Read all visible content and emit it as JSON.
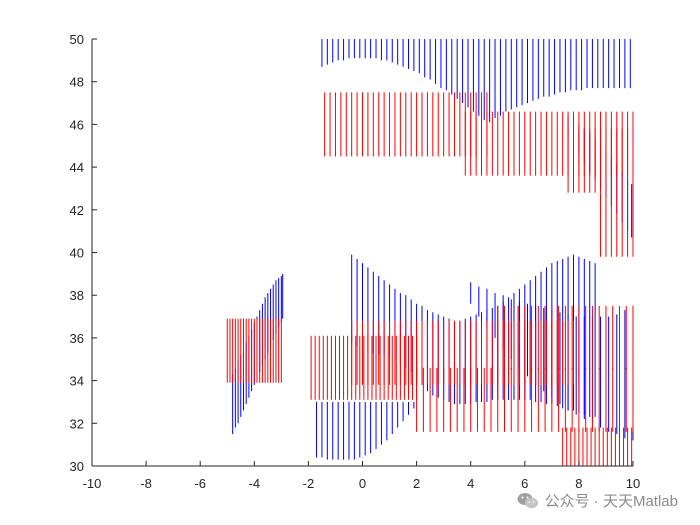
{
  "chart_data": {
    "type": "line",
    "title": "",
    "xlabel": "",
    "ylabel": "",
    "xlim": [
      -10,
      10
    ],
    "ylim": [
      30,
      50
    ],
    "xticks": [
      -10,
      -8,
      -6,
      -4,
      -2,
      0,
      2,
      4,
      6,
      8,
      10
    ],
    "yticks": [
      30,
      32,
      34,
      36,
      38,
      40,
      42,
      44,
      46,
      48,
      50
    ],
    "grid": false,
    "colors": {
      "blue": "#0000ff",
      "red": "#ff0000",
      "axis": "#262626"
    },
    "series": [
      {
        "color": "#0000ff",
        "segments": [
          {
            "x": [
              -4.8,
              -4.7,
              -4.6,
              -4.5,
              -4.4,
              -4.3,
              -4.2,
              -4.1,
              -4.0,
              -3.9,
              -3.8,
              -3.7,
              -3.6,
              -3.5,
              -3.4,
              -3.3,
              -3.2,
              -3.1,
              -3.0,
              -2.95
            ],
            "y1": [
              31.5,
              31.8,
              32.0,
              32.3,
              32.6,
              32.9,
              33.2,
              33.5,
              33.8,
              34.1,
              34.4,
              34.7,
              35.0,
              35.3,
              35.6,
              35.9,
              36.2,
              36.5,
              36.7,
              36.9
            ],
            "y2": [
              34.3,
              34.6,
              34.9,
              35.2,
              35.5,
              35.8,
              36.1,
              36.4,
              36.7,
              37.0,
              37.3,
              37.6,
              37.9,
              38.1,
              38.3,
              38.5,
              38.7,
              38.8,
              38.9,
              39.0
            ]
          },
          {
            "x": [
              -1.7,
              -1.5,
              -1.3,
              -1.1,
              -0.9,
              -0.7,
              -0.5,
              -0.3,
              -0.1,
              0.1,
              0.3,
              0.5,
              0.7,
              0.9,
              1.1,
              1.3,
              1.5,
              1.7,
              1.9
            ],
            "y1": [
              30.4,
              30.4,
              30.3,
              30.3,
              30.3,
              30.3,
              30.3,
              30.3,
              30.4,
              30.5,
              30.6,
              30.8,
              31.0,
              31.2,
              31.5,
              31.8,
              32.1,
              32.4,
              32.7
            ],
            "y2": [
              33.0,
              33.0,
              33.0,
              33.0,
              33.0,
              33.0,
              33.0,
              33.0,
              33.0,
              33.0,
              33.0,
              33.0,
              33.0,
              33.0,
              33.0,
              33.0,
              33.0,
              33.0,
              33.0
            ]
          },
          {
            "x": [
              -0.4,
              -0.2,
              0.0,
              0.2,
              0.4,
              0.6,
              0.8,
              1.0,
              1.2,
              1.4,
              1.6,
              1.8,
              2.0,
              2.2,
              2.4,
              2.6,
              2.8,
              3.0,
              3.2,
              3.4,
              3.6,
              3.8,
              4.0,
              4.2,
              4.4,
              4.6,
              4.8,
              5.0,
              5.2,
              5.4,
              5.6,
              5.8,
              6.0,
              6.2,
              6.4,
              6.6,
              6.8,
              7.0,
              7.2,
              7.4,
              7.6,
              7.8,
              8.0,
              8.2,
              8.4,
              8.6
            ],
            "y1": [
              35.8,
              35.6,
              35.5,
              35.4,
              35.3,
              35.2,
              35.2,
              35.1,
              35.0,
              34.8,
              34.6,
              34.4,
              34.1,
              33.8,
              33.5,
              33.3,
              33.2,
              33.1,
              33.0,
              32.9,
              32.9,
              32.9,
              32.9,
              33.0,
              33.0,
              33.0,
              33.1,
              33.1,
              33.1,
              33.1,
              33.1,
              33.1,
              33.1,
              33.1,
              33.0,
              33.0,
              32.9,
              32.9,
              32.8,
              32.7,
              32.6,
              32.6,
              32.5,
              32.4,
              32.3,
              32.3
            ],
            "y2": [
              39.9,
              39.7,
              39.5,
              39.3,
              39.1,
              38.9,
              38.7,
              38.5,
              38.3,
              38.1,
              38.0,
              37.8,
              37.6,
              37.5,
              37.3,
              37.2,
              37.1,
              37.0,
              36.9,
              36.8,
              36.8,
              36.9,
              37.0,
              37.1,
              37.2,
              37.3,
              37.4,
              37.5,
              37.7,
              37.9,
              38.1,
              38.3,
              38.5,
              38.7,
              38.9,
              39.1,
              39.3,
              39.5,
              39.6,
              39.7,
              39.8,
              39.9,
              39.8,
              39.7,
              39.6,
              39.5
            ]
          },
          {
            "x": [
              4.0,
              4.3,
              4.6,
              4.9,
              5.2,
              5.5,
              5.8,
              6.1,
              6.4,
              6.7,
              7.0,
              7.3,
              7.6,
              7.9,
              8.2,
              8.5,
              8.8,
              9.1,
              9.4,
              9.7,
              10.0
            ],
            "y1": [
              37.6,
              37.0,
              36.5,
              36.0,
              35.5,
              35.0,
              34.6,
              34.2,
              33.8,
              33.5,
              33.2,
              32.9,
              32.6,
              32.4,
              32.2,
              32.0,
              31.8,
              31.6,
              31.5,
              31.3,
              31.2
            ],
            "y2": [
              38.6,
              38.4,
              38.3,
              38.1,
              38.0,
              37.8,
              37.7,
              37.6,
              37.5,
              37.4,
              37.3,
              37.2,
              37.1,
              37.0,
              37.0,
              37.0,
              37.0,
              37.0,
              37.1,
              37.3,
              37.5
            ]
          },
          {
            "x": [
              -1.5,
              -1.3,
              -1.1,
              -0.9,
              -0.7,
              -0.5,
              -0.3,
              -0.1,
              0.1,
              0.3,
              0.5,
              0.7,
              0.9,
              1.1,
              1.3,
              1.5,
              1.7,
              1.9,
              2.1,
              2.3,
              2.5,
              2.7,
              2.9,
              3.1,
              3.3,
              3.5,
              3.7,
              3.9,
              4.1,
              4.3,
              4.5,
              4.7,
              4.9,
              5.1,
              5.3,
              5.5,
              5.7,
              5.9,
              6.1,
              6.3,
              6.5,
              6.7,
              6.9,
              7.1,
              7.3,
              7.5,
              7.7,
              7.9,
              8.1,
              8.3,
              8.5,
              8.7,
              8.9,
              9.1,
              9.3,
              9.5,
              9.7,
              9.9
            ],
            "y1": [
              48.7,
              48.8,
              48.9,
              49.0,
              49.0,
              49.1,
              49.1,
              49.1,
              49.1,
              49.1,
              49.1,
              49.0,
              49.0,
              48.9,
              48.8,
              48.7,
              48.6,
              48.5,
              48.4,
              48.2,
              48.1,
              47.9,
              47.7,
              47.6,
              47.4,
              47.2,
              47.0,
              46.8,
              46.6,
              46.4,
              46.2,
              46.1,
              46.3,
              46.4,
              46.6,
              46.7,
              46.8,
              46.9,
              47.0,
              47.1,
              47.2,
              47.3,
              47.3,
              47.4,
              47.5,
              47.5,
              47.6,
              47.6,
              47.6,
              47.7,
              47.7,
              47.7,
              47.7,
              47.7,
              47.7,
              47.7,
              47.7,
              47.7
            ],
            "y2": [
              50,
              50,
              50,
              50,
              50,
              50,
              50,
              50,
              50,
              50,
              50,
              50,
              50,
              50,
              50,
              50,
              50,
              50,
              50,
              50,
              50,
              50,
              50,
              50,
              50,
              50,
              50,
              50,
              50,
              50,
              50,
              50,
              50,
              50,
              50,
              50,
              50,
              50,
              50,
              50,
              50,
              50,
              50,
              50,
              50,
              50,
              50,
              50,
              50,
              50,
              50,
              50,
              50,
              50,
              50,
              50,
              50,
              50
            ]
          },
          {
            "x": [
              7.6,
              7.8,
              8.0,
              8.2,
              8.4,
              8.6,
              8.8,
              9.0,
              9.2,
              9.4,
              9.6,
              9.8,
              9.95
            ],
            "y1": [
              45.4,
              45.0,
              44.6,
              44.2,
              43.8,
              43.4,
              43.0,
              42.6,
              42.2,
              41.8,
              41.4,
              41.0,
              40.7
            ],
            "y2": [
              46.4,
              46.2,
              46.0,
              45.8,
              45.6,
              45.3,
              45.0,
              44.7,
              44.4,
              44.1,
              43.8,
              43.5,
              43.2
            ]
          }
        ]
      },
      {
        "color": "#ff0000",
        "segments": [
          {
            "x": [
              -5.0,
              -4.9,
              -4.8,
              -4.7,
              -4.6,
              -4.5,
              -4.4,
              -4.3,
              -4.2,
              -4.1,
              -4.0,
              -3.9,
              -3.8,
              -3.7,
              -3.6,
              -3.5,
              -3.4,
              -3.3,
              -3.2,
              -3.1,
              -3.0
            ],
            "y1": [
              33.9
            ],
            "y2": [
              36.9
            ]
          },
          {
            "x": [
              -1.9,
              -1.75,
              -1.6,
              -1.45,
              -1.3,
              -1.15,
              -1.0,
              -0.85,
              -0.7,
              -0.55,
              -0.4,
              -0.25,
              -0.1,
              0.05,
              0.2,
              0.35,
              0.5,
              0.65,
              0.8,
              0.95,
              1.1,
              1.25,
              1.4,
              1.55,
              1.7,
              1.85,
              2.0
            ],
            "y1": [
              33.1
            ],
            "y2": [
              36.1
            ]
          },
          {
            "x": [
              -0.4,
              -0.2,
              0.0,
              0.2,
              0.4,
              0.6,
              0.8,
              1.0,
              1.2,
              1.4,
              1.6,
              1.8,
              2.0,
              2.2,
              2.4,
              2.6,
              2.8,
              3.0,
              3.2,
              3.4,
              3.6,
              3.8,
              4.0,
              4.2,
              4.4,
              4.6,
              4.8,
              5.0,
              5.2,
              5.4,
              5.6,
              5.8,
              6.0,
              6.2,
              6.4,
              6.6,
              6.8,
              7.0,
              7.2,
              7.4,
              7.6,
              7.8,
              8.0
            ],
            "y1": [
              33.8
            ],
            "y2": [
              36.8
            ]
          },
          {
            "x": [
              2.0,
              2.25,
              2.5,
              2.75,
              3.0,
              3.25,
              3.5,
              3.75,
              4.0,
              4.25,
              4.5,
              4.75,
              5.0,
              5.25,
              5.5,
              5.75,
              6.0,
              6.25,
              6.5,
              6.75,
              7.0,
              7.25,
              7.5,
              7.75,
              8.0,
              8.25,
              8.5,
              8.75,
              9.0,
              9.25,
              9.5,
              9.75,
              10.0
            ],
            "y1": [
              31.6
            ],
            "y2": [
              34.6
            ]
          },
          {
            "x": [
              5.0,
              5.25,
              5.5,
              5.75,
              6.0,
              6.25,
              6.5,
              6.75,
              7.0,
              7.25,
              7.5,
              7.75,
              8.0,
              8.25,
              8.5,
              8.75,
              9.0,
              9.25,
              9.5,
              9.75,
              10.0
            ],
            "y1": [
              34.5
            ],
            "y2": [
              37.5
            ]
          },
          {
            "x": [
              7.4,
              7.55,
              7.7,
              7.85,
              8.0,
              8.15,
              8.3,
              8.45,
              8.6,
              8.75,
              8.9,
              9.05,
              9.2,
              9.35,
              9.5,
              9.65,
              9.8,
              9.95
            ],
            "y1": [
              30.0
            ],
            "y2": [
              31.8
            ]
          },
          {
            "x": [
              -1.4,
              -1.2,
              -1.0,
              -0.8,
              -0.6,
              -0.4,
              -0.2,
              0.0,
              0.2,
              0.4,
              0.6,
              0.8,
              1.0,
              1.2,
              1.4,
              1.6,
              1.8,
              2.0,
              2.2,
              2.4,
              2.6,
              2.8,
              3.0,
              3.2,
              3.4,
              3.6,
              3.8,
              4.0,
              4.2,
              4.4,
              4.6
            ],
            "y1": [
              44.5
            ],
            "y2": [
              47.5
            ]
          },
          {
            "x": [
              3.8,
              4.0,
              4.2,
              4.4,
              4.6,
              4.8,
              5.0,
              5.2,
              5.4,
              5.6,
              5.8,
              6.0,
              6.2,
              6.4,
              6.6,
              6.8,
              7.0,
              7.2,
              7.4,
              7.6,
              7.8,
              8.0,
              8.2,
              8.4,
              8.6,
              8.8,
              9.0,
              9.2,
              9.4,
              9.6,
              9.8,
              10.0
            ],
            "y1": [
              43.6
            ],
            "y2": [
              46.6
            ]
          },
          {
            "x": [
              7.6,
              7.8,
              8.0,
              8.2,
              8.4,
              8.6,
              8.8,
              9.0,
              9.2,
              9.4,
              9.6,
              9.8,
              10.0
            ],
            "y1": [
              42.8
            ],
            "y2": [
              45.8
            ]
          },
          {
            "x": [
              8.8,
              9.0,
              9.2,
              9.4,
              9.6,
              9.8,
              10.0
            ],
            "y1": [
              39.8
            ],
            "y2": [
              42.8
            ]
          }
        ]
      }
    ]
  },
  "watermark": {
    "text": "公众号 · 天天Matlab"
  }
}
